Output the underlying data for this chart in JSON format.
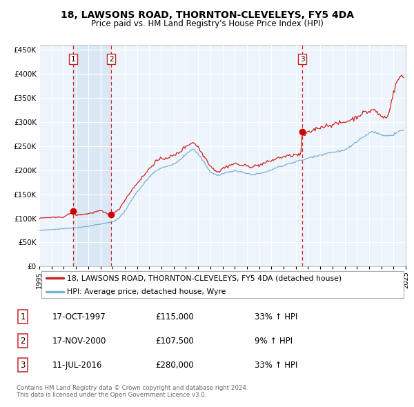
{
  "title": "18, LAWSONS ROAD, THORNTON-CLEVELEYS, FY5 4DA",
  "subtitle": "Price paid vs. HM Land Registry's House Price Index (HPI)",
  "legend_line1": "18, LAWSONS ROAD, THORNTON-CLEVELEYS, FY5 4DA (detached house)",
  "legend_line2": "HPI: Average price, detached house, Wyre",
  "footer1": "Contains HM Land Registry data © Crown copyright and database right 2024.",
  "footer2": "This data is licensed under the Open Government Licence v3.0.",
  "sales": [
    {
      "num": 1,
      "date": "17-OCT-1997",
      "price": 115000,
      "hpi_pct": "33% ↑ HPI",
      "x": 1997.79
    },
    {
      "num": 2,
      "date": "17-NOV-2000",
      "price": 107500,
      "hpi_pct": "9% ↑ HPI",
      "x": 2000.88
    },
    {
      "num": 3,
      "date": "11-JUL-2016",
      "price": 280000,
      "hpi_pct": "33% ↑ HPI",
      "x": 2016.53
    }
  ],
  "red_line_color": "#cc2222",
  "blue_line_color": "#7ab0d4",
  "sale_dot_color": "#cc0000",
  "vline_color": "#cc2222",
  "shade_color": "#dae8f5",
  "grid_color": "#cccccc",
  "ylim": [
    0,
    460000
  ],
  "yticks": [
    0,
    50000,
    100000,
    150000,
    200000,
    250000,
    300000,
    350000,
    400000,
    450000
  ],
  "bg_color": "#ffffff",
  "shade_regions": [
    [
      1997.79,
      2000.88
    ]
  ],
  "xlim": [
    1995.0,
    2025.0
  ]
}
